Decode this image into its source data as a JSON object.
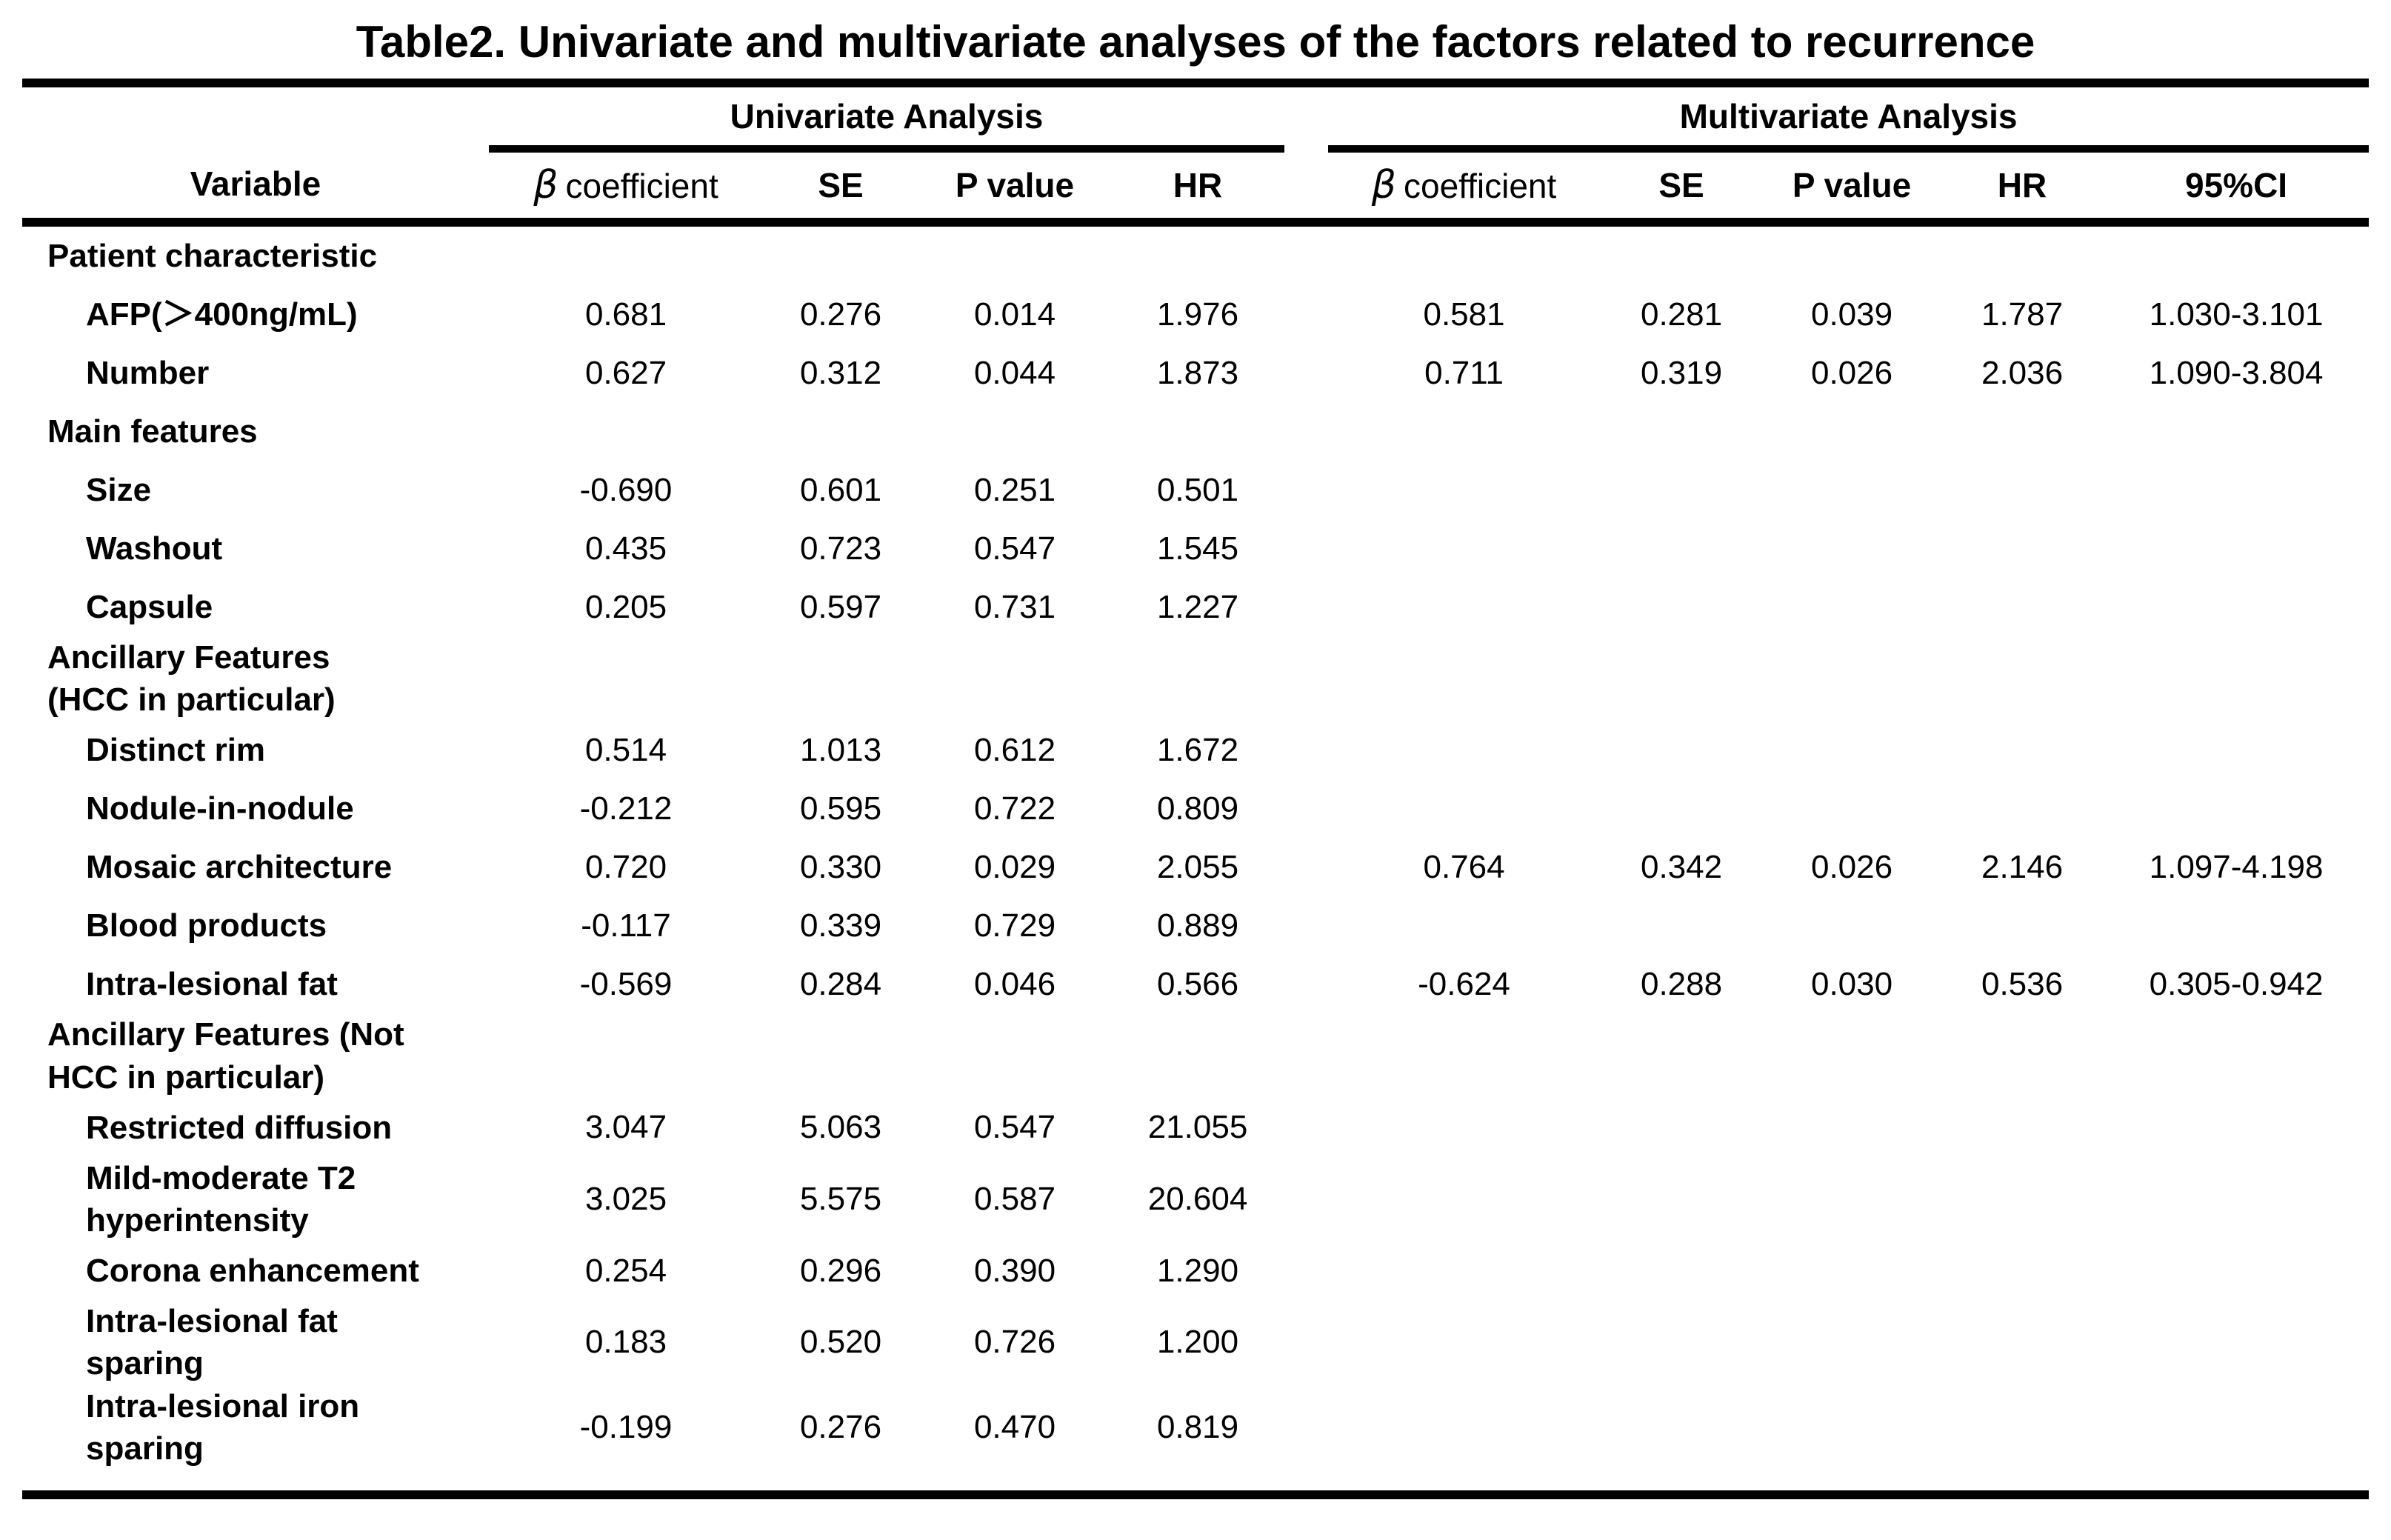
{
  "title": "Table2. Univariate and multivariate analyses of the factors related to recurrence",
  "table": {
    "group_headers": {
      "univariate": "Univariate Analysis",
      "multivariate": "Multivariate Analysis"
    },
    "column_headers": {
      "variable": "Variable",
      "beta_symbol": "β",
      "beta_word": "coefficient",
      "se": "SE",
      "p": "P value",
      "hr": "HR",
      "ci": "95%CI"
    },
    "rows": [
      {
        "type": "section",
        "label": "Patient characteristic",
        "values": [
          "",
          "",
          "",
          "",
          "",
          "",
          "",
          "",
          ""
        ]
      },
      {
        "type": "item",
        "label": "AFP(＞400ng/mL)",
        "values": [
          "0.681",
          "0.276",
          "0.014",
          "1.976",
          "0.581",
          "0.281",
          "0.039",
          "1.787",
          "1.030-3.101"
        ]
      },
      {
        "type": "item",
        "label": "Number",
        "values": [
          "0.627",
          "0.312",
          "0.044",
          "1.873",
          "0.711",
          "0.319",
          "0.026",
          "2.036",
          "1.090-3.804"
        ]
      },
      {
        "type": "section",
        "label": "Main features",
        "values": [
          "",
          "",
          "",
          "",
          "",
          "",
          "",
          "",
          ""
        ]
      },
      {
        "type": "item",
        "label": "Size",
        "values": [
          "-0.690",
          "0.601",
          "0.251",
          "0.501",
          "",
          "",
          "",
          "",
          ""
        ]
      },
      {
        "type": "item",
        "label": "Washout",
        "values": [
          "0.435",
          "0.723",
          "0.547",
          "1.545",
          "",
          "",
          "",
          "",
          ""
        ]
      },
      {
        "type": "item",
        "label": "Capsule",
        "values": [
          "0.205",
          "0.597",
          "0.731",
          "1.227",
          "",
          "",
          "",
          "",
          ""
        ]
      },
      {
        "type": "section",
        "label": "Ancillary Features\n(HCC in particular)",
        "values": [
          "",
          "",
          "",
          "",
          "",
          "",
          "",
          "",
          ""
        ]
      },
      {
        "type": "item",
        "label": "Distinct rim",
        "values": [
          "0.514",
          "1.013",
          "0.612",
          "1.672",
          "",
          "",
          "",
          "",
          ""
        ]
      },
      {
        "type": "item",
        "label": "Nodule-in-nodule",
        "values": [
          "-0.212",
          "0.595",
          "0.722",
          "0.809",
          "",
          "",
          "",
          "",
          ""
        ]
      },
      {
        "type": "item",
        "label": "Mosaic architecture",
        "values": [
          "0.720",
          "0.330",
          "0.029",
          "2.055",
          "0.764",
          "0.342",
          "0.026",
          "2.146",
          "1.097-4.198"
        ]
      },
      {
        "type": "item",
        "label": "Blood products",
        "values": [
          "-0.117",
          "0.339",
          "0.729",
          "0.889",
          "",
          "",
          "",
          "",
          ""
        ]
      },
      {
        "type": "item",
        "label": "Intra-lesional fat",
        "values": [
          "-0.569",
          "0.284",
          "0.046",
          "0.566",
          "-0.624",
          "0.288",
          "0.030",
          "0.536",
          "0.305-0.942"
        ]
      },
      {
        "type": "section",
        "label": "Ancillary Features (Not\nHCC in particular)",
        "values": [
          "",
          "",
          "",
          "",
          "",
          "",
          "",
          "",
          ""
        ]
      },
      {
        "type": "item",
        "label": "Restricted diffusion",
        "values": [
          "3.047",
          "5.063",
          "0.547",
          "21.055",
          "",
          "",
          "",
          "",
          ""
        ]
      },
      {
        "type": "item",
        "label": "Mild-moderate T2\nhyperintensity",
        "values": [
          "3.025",
          "5.575",
          "0.587",
          "20.604",
          "",
          "",
          "",
          "",
          ""
        ]
      },
      {
        "type": "item",
        "label": "Corona enhancement",
        "values": [
          "0.254",
          "0.296",
          "0.390",
          "1.290",
          "",
          "",
          "",
          "",
          ""
        ]
      },
      {
        "type": "item",
        "label": "Intra-lesional fat\nsparing",
        "values": [
          "0.183",
          "0.520",
          "0.726",
          "1.200",
          "",
          "",
          "",
          "",
          ""
        ]
      },
      {
        "type": "item",
        "label": "Intra-lesional iron\nsparing",
        "values": [
          "-0.199",
          "0.276",
          "0.470",
          "0.819",
          "",
          "",
          "",
          "",
          ""
        ]
      }
    ]
  }
}
